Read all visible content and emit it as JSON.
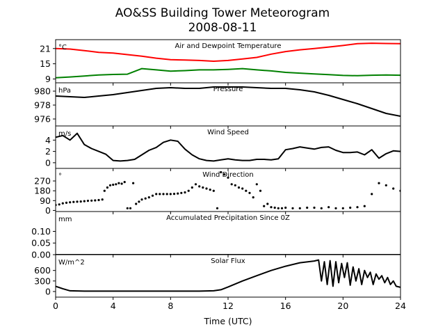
{
  "figure": {
    "title_line1": "AO&SS Building Tower Meteorogram",
    "title_line2": "2008-08-11",
    "xlabel": "Time (UTC)"
  },
  "chart_data": [
    {
      "type": "line",
      "title": "Air and Dewpoint Temperature",
      "unit": "°C",
      "xlim": [
        0,
        24
      ],
      "ylim": [
        7.5,
        24.5
      ],
      "yticks": [
        9,
        15,
        21
      ],
      "series": [
        {
          "color": "#ff0000",
          "x": [
            0,
            1,
            2,
            3,
            4,
            5,
            6,
            7,
            8,
            9,
            10,
            11,
            12,
            13,
            14,
            15,
            16,
            17,
            18,
            19,
            20,
            21,
            22,
            23,
            24
          ],
          "y": [
            21,
            20.8,
            20.2,
            19.5,
            19.2,
            18.6,
            18,
            17.2,
            16.6,
            16.5,
            16.3,
            16,
            16.3,
            16.9,
            17.5,
            18.8,
            19.8,
            20.5,
            21,
            21.6,
            22.2,
            22.9,
            23.1,
            23,
            22.9
          ]
        },
        {
          "color": "#008000",
          "x": [
            0,
            1,
            2,
            3,
            4,
            5,
            6,
            7,
            8,
            9,
            10,
            11,
            12,
            13,
            14,
            15,
            16,
            17,
            18,
            19,
            20,
            21,
            22,
            23,
            24
          ],
          "y": [
            9.5,
            9.8,
            10.2,
            10.6,
            10.8,
            10.9,
            13.1,
            12.6,
            12.1,
            12.3,
            12.6,
            12.6,
            12.8,
            13.1,
            12.6,
            12.2,
            11.6,
            11.3,
            11.0,
            10.7,
            10.4,
            10.3,
            10.5,
            10.6,
            10.5
          ]
        }
      ]
    },
    {
      "type": "line",
      "title": "Pressure",
      "unit": "hPa",
      "xlim": [
        0,
        24
      ],
      "ylim": [
        975,
        981.2
      ],
      "yticks": [
        976,
        978,
        980
      ],
      "series": [
        {
          "color": "#000000",
          "x": [
            0,
            1,
            2,
            3,
            4,
            5,
            6,
            7,
            8,
            9,
            10,
            11,
            12,
            13,
            14,
            15,
            16,
            17,
            18,
            19,
            20,
            21,
            22,
            23,
            24
          ],
          "y": [
            979.3,
            979.2,
            979.1,
            979.3,
            979.5,
            979.8,
            980.1,
            980.4,
            980.5,
            980.4,
            980.4,
            980.6,
            980.6,
            980.6,
            980.5,
            980.4,
            980.4,
            980.2,
            979.9,
            979.4,
            978.8,
            978.2,
            977.5,
            976.8,
            976.4
          ]
        }
      ]
    },
    {
      "type": "line",
      "title": "Wind Speed",
      "unit": "m/s",
      "xlim": [
        0,
        24
      ],
      "ylim": [
        -1,
        6.5
      ],
      "yticks": [
        0,
        2,
        4
      ],
      "series": [
        {
          "color": "#000000",
          "x": [
            0,
            0.5,
            1,
            1.5,
            2,
            2.5,
            3,
            3.5,
            4,
            4.5,
            5,
            5.5,
            6,
            6.5,
            7,
            7.5,
            8,
            8.5,
            9,
            9.5,
            10,
            10.5,
            11,
            11.5,
            12,
            12.5,
            13,
            13.5,
            14,
            14.5,
            15,
            15.5,
            16,
            16.5,
            17,
            17.5,
            18,
            18.5,
            19,
            19.5,
            20,
            20.5,
            21,
            21.5,
            22,
            22.5,
            23,
            23.5,
            24
          ],
          "y": [
            4.5,
            4.8,
            4,
            5.2,
            3.2,
            2.5,
            2,
            1.5,
            0.4,
            0.3,
            0.4,
            0.6,
            1.4,
            2.2,
            2.7,
            3.6,
            4,
            3.8,
            2.4,
            1.4,
            0.7,
            0.4,
            0.3,
            0.5,
            0.7,
            0.5,
            0.4,
            0.4,
            0.6,
            0.6,
            0.5,
            0.7,
            2.3,
            2.5,
            2.8,
            2.6,
            2.4,
            2.7,
            2.8,
            2.2,
            1.8,
            1.8,
            1.9,
            1.4,
            2.3,
            0.8,
            1.6,
            2.1,
            2
          ]
        }
      ]
    },
    {
      "type": "scatter",
      "title": "Wind Direction",
      "unit": "°",
      "xlim": [
        0,
        24
      ],
      "ylim": [
        -10,
        385
      ],
      "yticks": [
        0,
        90,
        180,
        270
      ],
      "series": [
        {
          "color": "#000000",
          "x": [
            0,
            0.25,
            0.5,
            0.75,
            1,
            1.25,
            1.5,
            1.75,
            2,
            2.25,
            2.5,
            2.75,
            3,
            3.25,
            3.4,
            3.6,
            3.8,
            4,
            4.2,
            4.4,
            4.6,
            4.8,
            5.0,
            5.2,
            5.4,
            5.6,
            5.8,
            6,
            6.25,
            6.5,
            6.75,
            7,
            7.25,
            7.5,
            7.75,
            8,
            8.25,
            8.5,
            8.75,
            9,
            9.25,
            9.5,
            9.75,
            10,
            10.25,
            10.5,
            10.75,
            11,
            11.25,
            11.5,
            11.75,
            12,
            12.25,
            12.5,
            12.75,
            13,
            13.25,
            13.5,
            13.75,
            14,
            14.25,
            14.5,
            14.75,
            15,
            15.25,
            15.5,
            15.75,
            16,
            16.5,
            17,
            17.5,
            18,
            18.5,
            19,
            19.5,
            20,
            20.5,
            21,
            21.5,
            22,
            22.5,
            23,
            23.5,
            24
          ],
          "y": [
            50,
            55,
            65,
            70,
            75,
            78,
            80,
            82,
            85,
            88,
            90,
            92,
            95,
            100,
            180,
            210,
            230,
            235,
            240,
            250,
            245,
            260,
            20,
            20,
            250,
            60,
            80,
            100,
            110,
            120,
            135,
            150,
            150,
            150,
            150,
            150,
            152,
            155,
            160,
            165,
            180,
            210,
            240,
            220,
            210,
            200,
            190,
            180,
            20,
            350,
            330,
            300,
            240,
            230,
            210,
            200,
            180,
            160,
            120,
            240,
            180,
            40,
            60,
            30,
            25,
            20,
            20,
            25,
            20,
            20,
            25,
            25,
            20,
            30,
            20,
            20,
            25,
            30,
            40,
            150,
            250,
            230,
            200,
            180
          ]
        }
      ]
    },
    {
      "type": "line",
      "title": "Accumulated Precipitation Since 0Z",
      "unit": "mm",
      "xlim": [
        0,
        24
      ],
      "ylim": [
        0,
        0.185
      ],
      "yticks": [
        0.0,
        0.05,
        0.1
      ],
      "ytick_labels": [
        "0.00",
        "0.05",
        "0.10"
      ],
      "series": [
        {
          "color": "#000000",
          "x": [
            0,
            24
          ],
          "y": [
            0,
            0
          ]
        }
      ]
    },
    {
      "type": "line",
      "title": "Solar Flux",
      "unit": "W/m^2",
      "xlim": [
        0,
        24
      ],
      "ylim": [
        -160,
        1050
      ],
      "yticks": [
        0,
        300,
        600
      ],
      "series": [
        {
          "color": "#000000",
          "x": [
            0,
            0.5,
            1,
            2,
            3,
            4,
            5,
            6,
            7,
            8,
            9,
            10,
            11,
            11.5,
            12,
            13,
            14,
            15,
            16,
            17,
            18,
            18.3,
            18.5,
            18.7,
            18.9,
            19.1,
            19.3,
            19.5,
            19.7,
            19.9,
            20.1,
            20.3,
            20.5,
            20.7,
            20.9,
            21.1,
            21.3,
            21.5,
            21.7,
            21.9,
            22.1,
            22.3,
            22.5,
            22.7,
            22.9,
            23.1,
            23.3,
            23.5,
            23.7,
            24
          ],
          "y": [
            150,
            80,
            20,
            10,
            10,
            10,
            10,
            10,
            10,
            10,
            10,
            10,
            20,
            50,
            130,
            300,
            450,
            600,
            720,
            820,
            870,
            900,
            300,
            850,
            200,
            880,
            150,
            850,
            250,
            800,
            400,
            820,
            180,
            700,
            300,
            650,
            200,
            600,
            400,
            550,
            200,
            500,
            350,
            450,
            250,
            400,
            200,
            300,
            150,
            120
          ]
        }
      ]
    }
  ],
  "xaxis": {
    "ticks": [
      0,
      4,
      8,
      12,
      16,
      20,
      24
    ],
    "tick_labels": [
      "0",
      "4",
      "8",
      "12",
      "16",
      "20",
      "24"
    ]
  }
}
